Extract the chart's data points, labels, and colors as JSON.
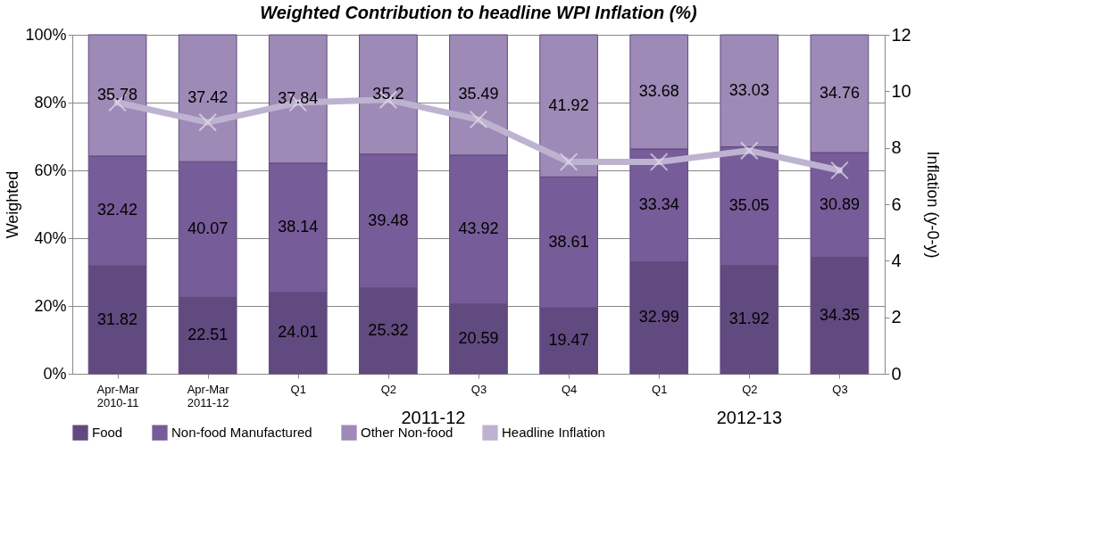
{
  "chart_data": {
    "type": "bar",
    "title": "Weighted Contribution to headline WPI Inflation (%)",
    "categories": [
      "Apr-Mar 2010-11",
      "Apr-Mar 2011-12",
      "Q1",
      "Q2",
      "Q3",
      "Q4",
      "Q1",
      "Q2",
      "Q3"
    ],
    "stacked": true,
    "grid": "y",
    "legend": "bottom",
    "ylabel": "Weighted",
    "y2label": "Inflation (y-0-y)",
    "ylim": [
      0,
      100
    ],
    "yticks": [
      {
        "value": 0,
        "label": "0%"
      },
      {
        "value": 20,
        "label": "20%"
      },
      {
        "value": 40,
        "label": "40%"
      },
      {
        "value": 60,
        "label": "60%"
      },
      {
        "value": 80,
        "label": "80%"
      },
      {
        "value": 100,
        "label": "100%"
      }
    ],
    "y2lim": [
      0,
      12
    ],
    "y2ticks": [
      0,
      2,
      4,
      6,
      8,
      10,
      12
    ],
    "annotations": [
      "2011-12",
      "2012-13"
    ],
    "series": [
      {
        "name": "Food",
        "color": "#614a7f",
        "values": [
          31.82,
          22.51,
          24.01,
          25.32,
          20.59,
          19.47,
          32.99,
          31.92,
          34.35
        ],
        "value_labels": [
          "31.82",
          "22.51",
          "24.01",
          "25.32",
          "20.59",
          "19.47",
          "32.99",
          "31.92",
          "34.35"
        ]
      },
      {
        "name": "Non-food Manufactured",
        "color": "#765c98",
        "values": [
          32.42,
          40.07,
          38.14,
          39.48,
          43.92,
          38.61,
          33.34,
          35.05,
          30.89
        ],
        "value_labels": [
          "32.42",
          "40.07",
          "38.14",
          "39.48",
          "43.92",
          "38.61",
          "33.34",
          "35.05",
          "30.89"
        ]
      },
      {
        "name": "Other Non-food",
        "color": "#9d8ab6",
        "values": [
          35.78,
          37.42,
          37.84,
          35.2,
          35.49,
          41.92,
          33.68,
          33.03,
          34.76
        ],
        "value_labels": [
          "35.78",
          "37.42",
          "37.84",
          "35.2",
          "35.49",
          "41.92",
          "33.68",
          "33.03",
          "34.76"
        ]
      },
      {
        "name": "Headline Inflation",
        "color": "#bdb3d1",
        "type": "line",
        "axis": "y2",
        "marker": "cross",
        "values": [
          9.6,
          8.9,
          9.6,
          9.7,
          9.0,
          7.5,
          7.5,
          7.9,
          7.2
        ]
      }
    ]
  }
}
